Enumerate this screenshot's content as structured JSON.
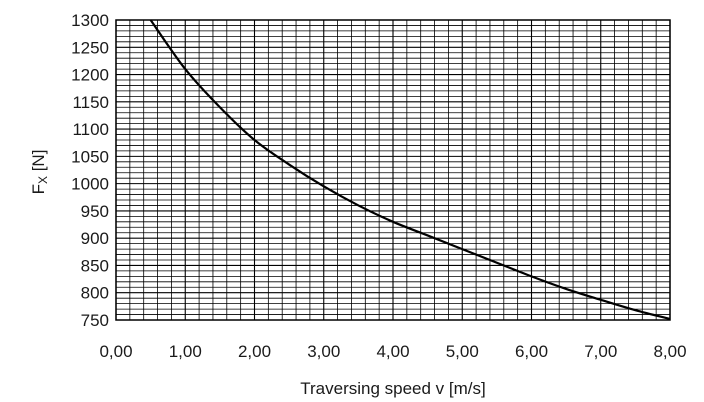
{
  "chart_data": {
    "type": "line",
    "title": "",
    "xlabel": "Traversing speed v [m/s]",
    "ylabel": "Fₓ [N]",
    "ylabel_main": "F",
    "ylabel_sub": "X",
    "ylabel_unit": " [N]",
    "xlim": [
      0,
      8
    ],
    "ylim": [
      750,
      1300
    ],
    "x_ticks": [
      "0,00",
      "1,00",
      "2,00",
      "3,00",
      "4,00",
      "5,00",
      "6,00",
      "7,00",
      "8,00"
    ],
    "y_ticks": [
      "750",
      "800",
      "850",
      "900",
      "950",
      "1000",
      "1050",
      "1100",
      "1150",
      "1200",
      "1250",
      "1300"
    ],
    "grid": true,
    "legend": "none",
    "series": [
      {
        "x": [
          0.5,
          1.0,
          1.5,
          2.0,
          2.5,
          3.0,
          3.5,
          4.0,
          4.5,
          5.0,
          5.5,
          6.0,
          6.5,
          7.0,
          7.5,
          8.0
        ],
        "y": [
          1300,
          1210,
          1140,
          1080,
          1035,
          995,
          960,
          930,
          905,
          880,
          855,
          830,
          807,
          787,
          768,
          752
        ]
      }
    ],
    "colors": {
      "line": "#000000",
      "grid": "#000000"
    }
  }
}
